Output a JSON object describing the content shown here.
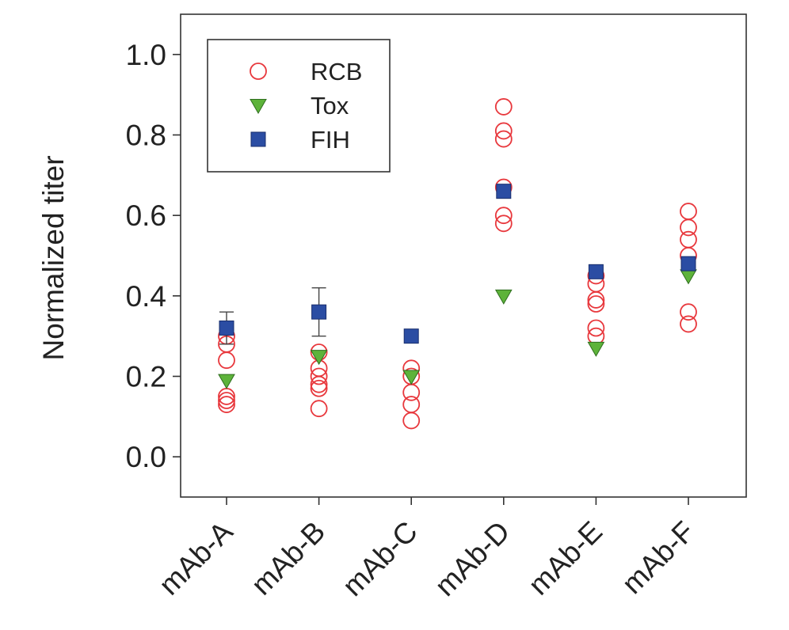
{
  "chart_data": {
    "type": "scatter",
    "title": "",
    "xlabel": "",
    "ylabel": "Normalized titer",
    "ylim": [
      -0.1,
      1.1
    ],
    "yticks": [
      "0.0",
      "0.2",
      "0.4",
      "0.6",
      "0.8",
      "1.0"
    ],
    "categories": [
      "mAb-A",
      "mAb-B",
      "mAb-C",
      "mAb-D",
      "mAb-E",
      "mAb-F"
    ],
    "grid": false,
    "legend": "top-left",
    "series": [
      {
        "name": "RCB",
        "marker": "open-circle",
        "color": "#e8383d",
        "points": [
          [
            0,
            0.3
          ],
          [
            0,
            0.28
          ],
          [
            0,
            0.24
          ],
          [
            0,
            0.15
          ],
          [
            0,
            0.14
          ],
          [
            0,
            0.13
          ],
          [
            1,
            0.26
          ],
          [
            1,
            0.22
          ],
          [
            1,
            0.2
          ],
          [
            1,
            0.18
          ],
          [
            1,
            0.17
          ],
          [
            1,
            0.12
          ],
          [
            2,
            0.22
          ],
          [
            2,
            0.2
          ],
          [
            2,
            0.16
          ],
          [
            2,
            0.13
          ],
          [
            2,
            0.09
          ],
          [
            3,
            0.87
          ],
          [
            3,
            0.81
          ],
          [
            3,
            0.79
          ],
          [
            3,
            0.67
          ],
          [
            3,
            0.6
          ],
          [
            3,
            0.58
          ],
          [
            4,
            0.45
          ],
          [
            4,
            0.43
          ],
          [
            4,
            0.39
          ],
          [
            4,
            0.38
          ],
          [
            4,
            0.32
          ],
          [
            4,
            0.3
          ],
          [
            5,
            0.61
          ],
          [
            5,
            0.57
          ],
          [
            5,
            0.54
          ],
          [
            5,
            0.5
          ],
          [
            5,
            0.36
          ],
          [
            5,
            0.33
          ]
        ]
      },
      {
        "name": "Tox",
        "marker": "down-triangle",
        "color": "#5db33a",
        "points": [
          [
            0,
            0.19
          ],
          [
            1,
            0.25
          ],
          [
            2,
            0.2
          ],
          [
            3,
            0.4
          ],
          [
            4,
            0.27
          ],
          [
            5,
            0.45
          ]
        ]
      },
      {
        "name": "FIH",
        "marker": "square",
        "color": "#2b4da3",
        "points": [
          [
            0,
            0.32
          ],
          [
            1,
            0.36
          ],
          [
            2,
            0.3
          ],
          [
            3,
            0.66
          ],
          [
            4,
            0.46
          ],
          [
            5,
            0.48
          ]
        ],
        "error": [
          0.04,
          0.06,
          0,
          0,
          0,
          0
        ]
      }
    ]
  }
}
